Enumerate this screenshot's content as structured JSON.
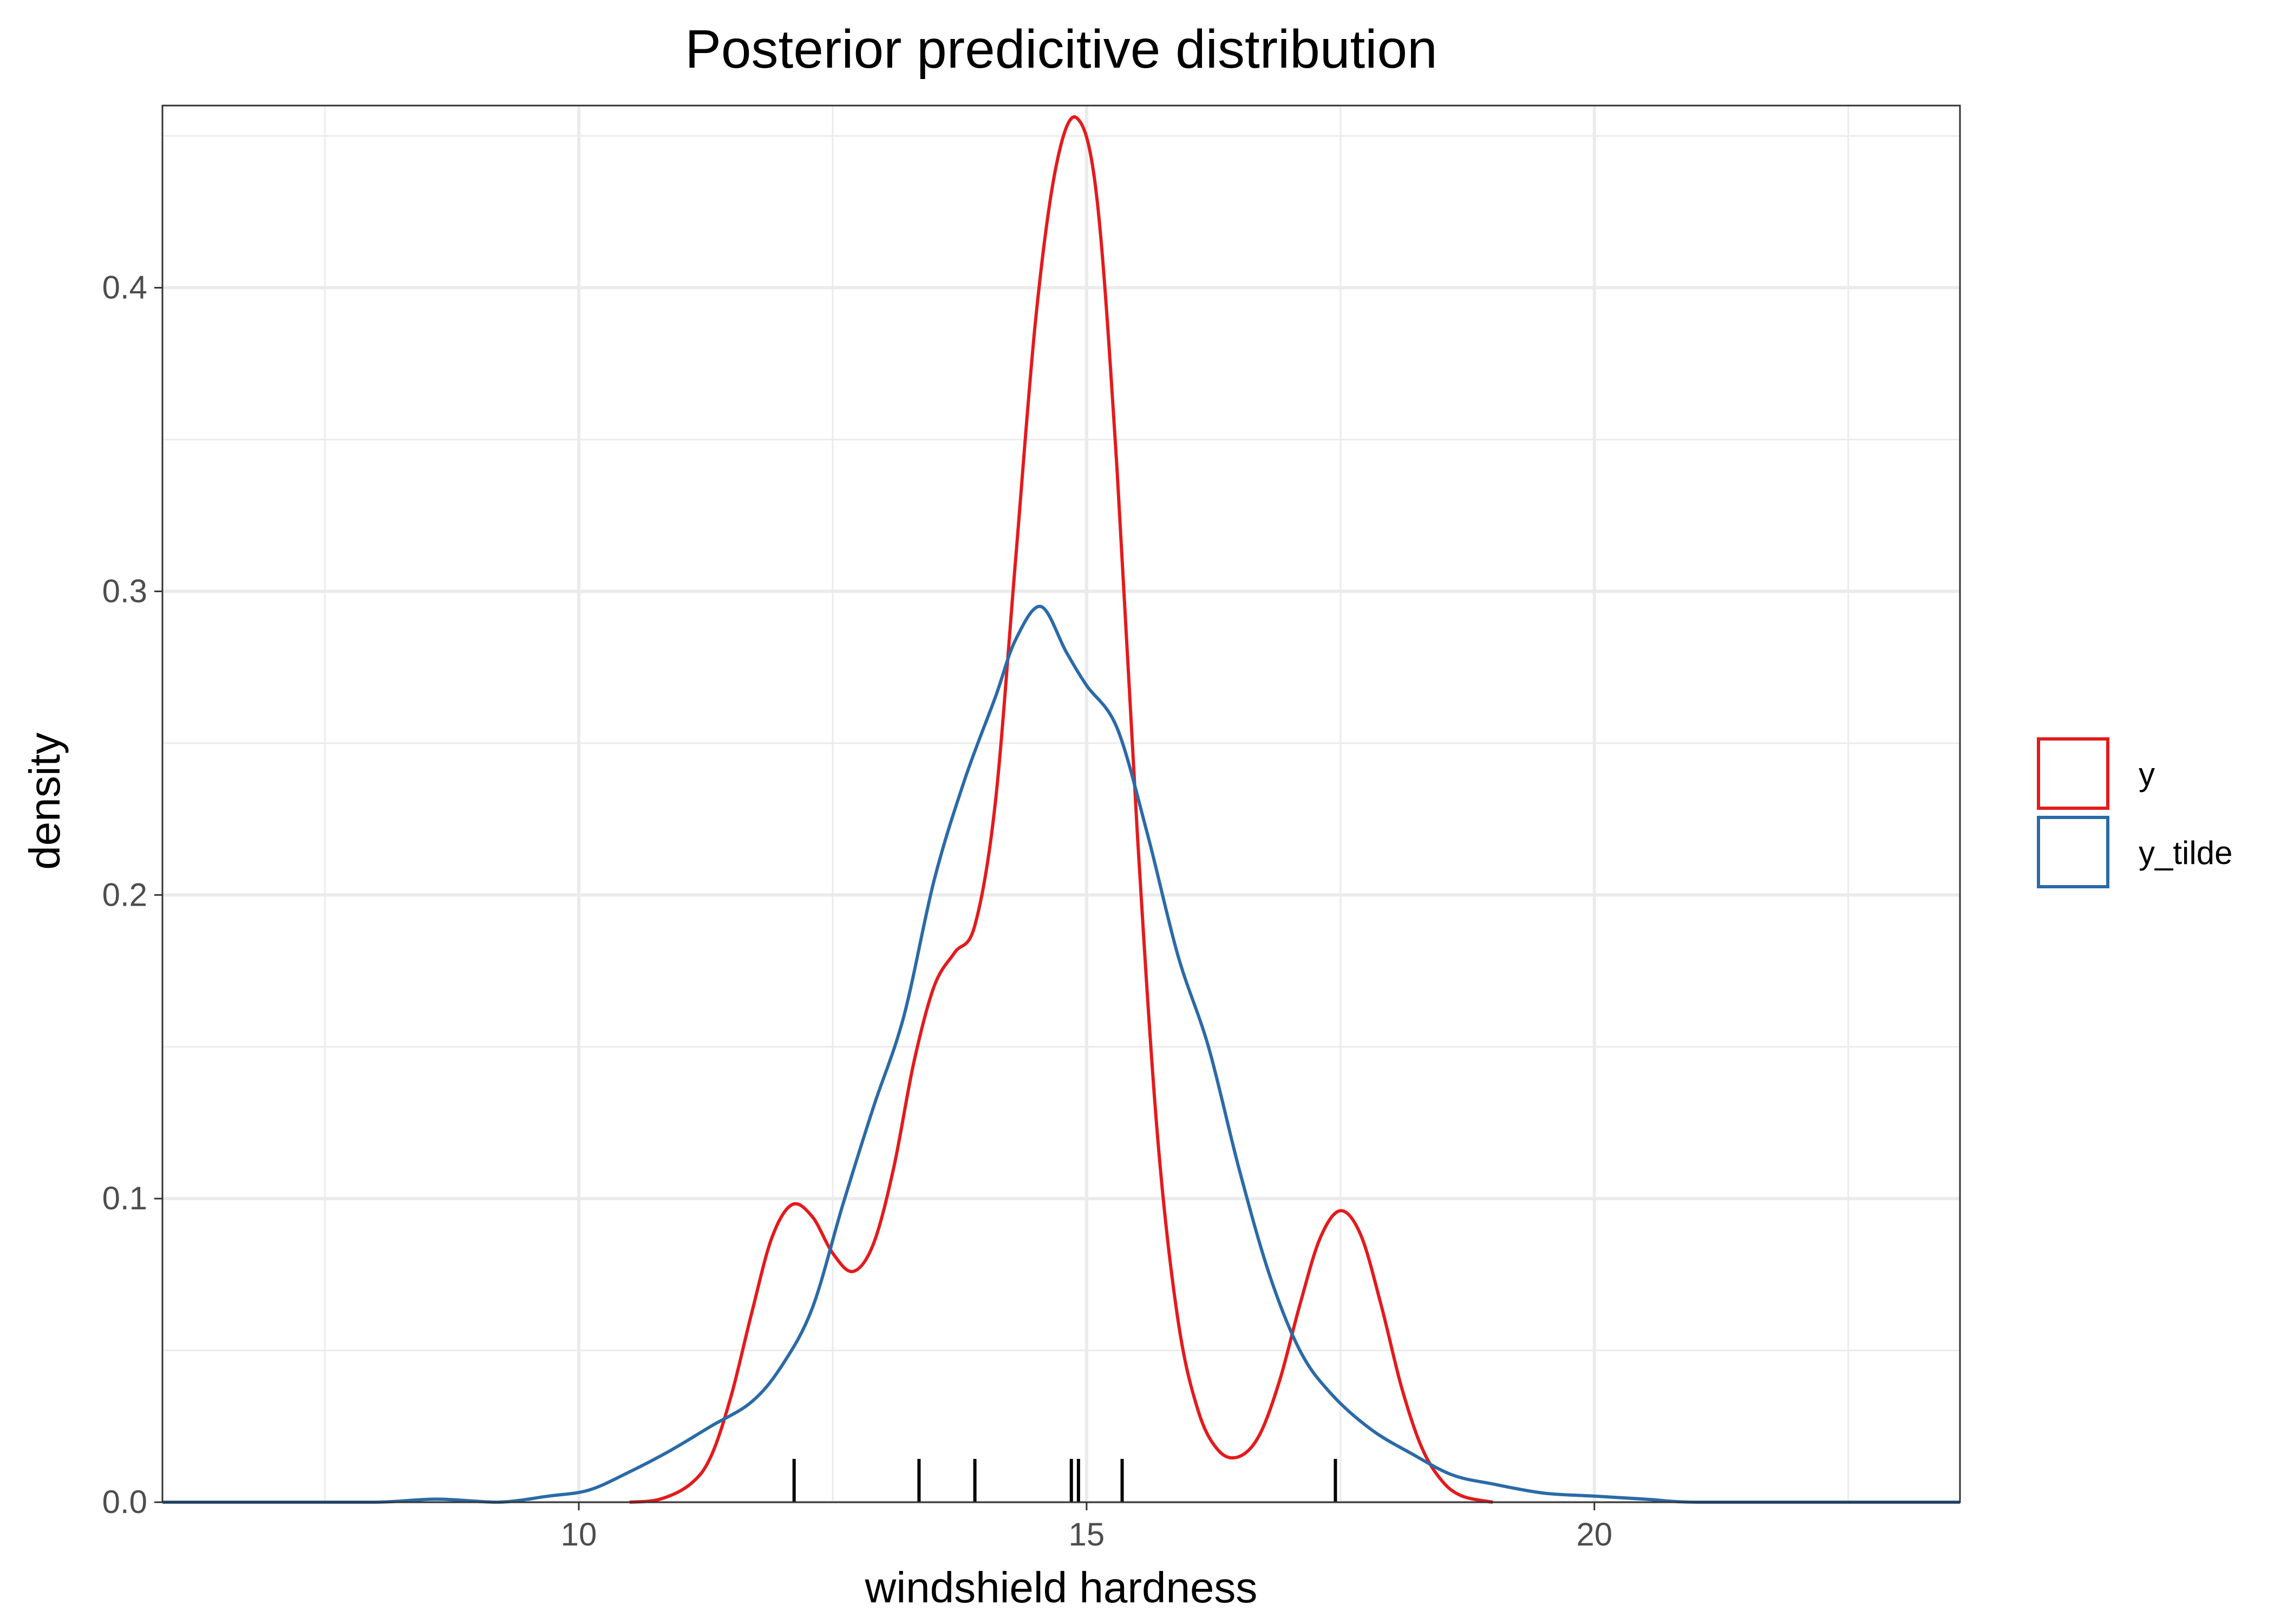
{
  "chart_data": {
    "type": "line",
    "title": "Posterior predicitive distribution",
    "xlabel": "windshield hardness",
    "ylabel": "density",
    "xlim": [
      5.9,
      23.6
    ],
    "ylim": [
      0,
      0.46
    ],
    "x_ticks": [
      10,
      15,
      20
    ],
    "x_tick_labels": [
      "10",
      "15",
      "20"
    ],
    "y_ticks": [
      0.0,
      0.1,
      0.2,
      0.3,
      0.4
    ],
    "y_tick_labels": [
      "0.0",
      "0.1",
      "0.2",
      "0.3",
      "0.4"
    ],
    "grid": true,
    "legend_position": "right",
    "series": [
      {
        "name": "y",
        "color": "#e41a1c",
        "points": [
          [
            10.5,
            0.0
          ],
          [
            10.8,
            0.001
          ],
          [
            11.1,
            0.006
          ],
          [
            11.3,
            0.015
          ],
          [
            11.5,
            0.035
          ],
          [
            11.7,
            0.062
          ],
          [
            11.9,
            0.087
          ],
          [
            12.1,
            0.098
          ],
          [
            12.3,
            0.094
          ],
          [
            12.5,
            0.082
          ],
          [
            12.7,
            0.076
          ],
          [
            12.9,
            0.085
          ],
          [
            13.1,
            0.11
          ],
          [
            13.3,
            0.145
          ],
          [
            13.5,
            0.17
          ],
          [
            13.7,
            0.181
          ],
          [
            13.9,
            0.19
          ],
          [
            14.1,
            0.23
          ],
          [
            14.3,
            0.31
          ],
          [
            14.5,
            0.39
          ],
          [
            14.7,
            0.44
          ],
          [
            14.9,
            0.456
          ],
          [
            15.1,
            0.43
          ],
          [
            15.3,
            0.34
          ],
          [
            15.5,
            0.22
          ],
          [
            15.7,
            0.12
          ],
          [
            15.9,
            0.06
          ],
          [
            16.1,
            0.03
          ],
          [
            16.3,
            0.017
          ],
          [
            16.5,
            0.015
          ],
          [
            16.7,
            0.022
          ],
          [
            16.9,
            0.04
          ],
          [
            17.1,
            0.065
          ],
          [
            17.3,
            0.087
          ],
          [
            17.5,
            0.096
          ],
          [
            17.7,
            0.088
          ],
          [
            17.9,
            0.065
          ],
          [
            18.1,
            0.038
          ],
          [
            18.3,
            0.018
          ],
          [
            18.5,
            0.007
          ],
          [
            18.7,
            0.002
          ],
          [
            19.0,
            0.0
          ]
        ]
      },
      {
        "name": "y_tilde",
        "color": "#2b6aa8",
        "points": [
          [
            5.9,
            0.0
          ],
          [
            7.0,
            0.0
          ],
          [
            8.0,
            0.0
          ],
          [
            8.6,
            0.001
          ],
          [
            9.2,
            0.0
          ],
          [
            9.7,
            0.002
          ],
          [
            10.1,
            0.004
          ],
          [
            10.5,
            0.01
          ],
          [
            10.9,
            0.017
          ],
          [
            11.3,
            0.025
          ],
          [
            11.7,
            0.033
          ],
          [
            12.0,
            0.045
          ],
          [
            12.3,
            0.064
          ],
          [
            12.6,
            0.098
          ],
          [
            12.9,
            0.13
          ],
          [
            13.2,
            0.16
          ],
          [
            13.5,
            0.205
          ],
          [
            13.8,
            0.238
          ],
          [
            14.1,
            0.265
          ],
          [
            14.3,
            0.284
          ],
          [
            14.55,
            0.295
          ],
          [
            14.8,
            0.28
          ],
          [
            15.0,
            0.269
          ],
          [
            15.3,
            0.255
          ],
          [
            15.6,
            0.22
          ],
          [
            15.9,
            0.18
          ],
          [
            16.2,
            0.15
          ],
          [
            16.5,
            0.11
          ],
          [
            16.8,
            0.075
          ],
          [
            17.1,
            0.05
          ],
          [
            17.4,
            0.036
          ],
          [
            17.8,
            0.024
          ],
          [
            18.2,
            0.016
          ],
          [
            18.6,
            0.009
          ],
          [
            19.0,
            0.006
          ],
          [
            19.5,
            0.003
          ],
          [
            20.0,
            0.002
          ],
          [
            20.5,
            0.001
          ],
          [
            21.0,
            0.0
          ],
          [
            22.2,
            0.0
          ],
          [
            23.6,
            0.0
          ]
        ]
      }
    ],
    "rug": [
      12.12,
      13.35,
      13.9,
      14.85,
      14.92,
      15.35,
      17.45
    ]
  }
}
